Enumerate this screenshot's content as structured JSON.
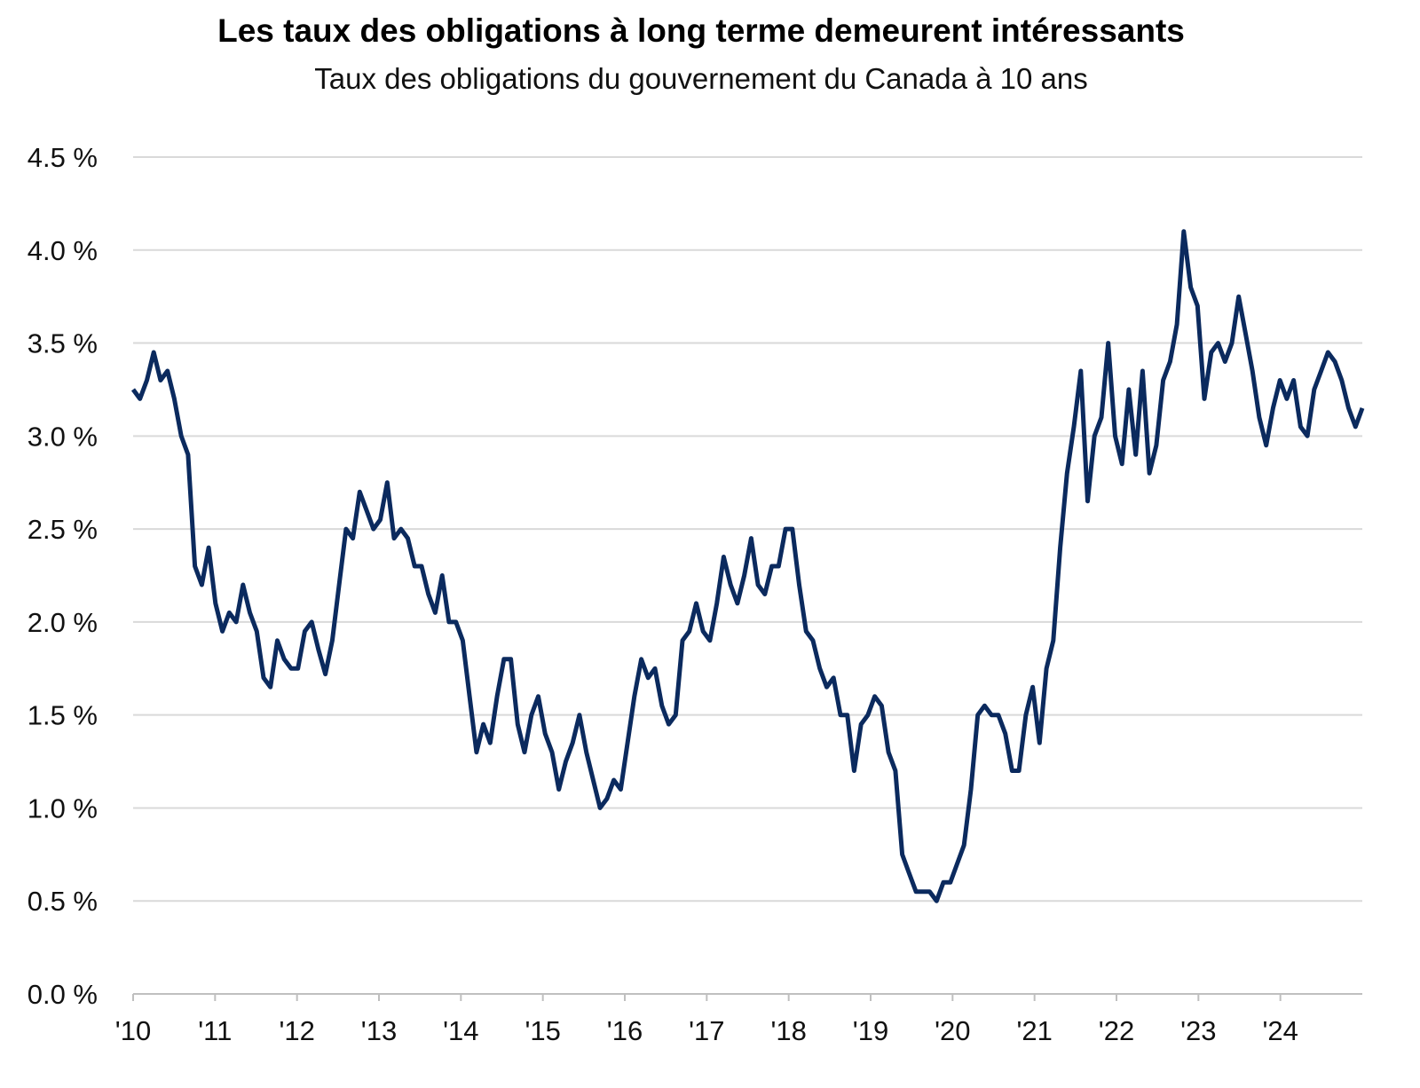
{
  "chart_data": {
    "type": "line",
    "title": "Les taux des obligations à long terme demeurent intéressants",
    "subtitle": "Taux des obligations du gouvernement du Canada à 10 ans",
    "xlabel": "",
    "ylabel": "",
    "ylim": [
      0,
      4.5
    ],
    "xlim": [
      "2010-01",
      "2024-12"
    ],
    "grid": "horizontal",
    "line_color": "#0b2a5e",
    "y_ticks": [
      {
        "value": 0.0,
        "label": "0.0 %"
      },
      {
        "value": 0.5,
        "label": "0.5 %"
      },
      {
        "value": 1.0,
        "label": "1.0 %"
      },
      {
        "value": 1.5,
        "label": "1.5 %"
      },
      {
        "value": 2.0,
        "label": "2.0 %"
      },
      {
        "value": 2.5,
        "label": "2.5 %"
      },
      {
        "value": 3.0,
        "label": "3.0 %"
      },
      {
        "value": 3.5,
        "label": "3.5 %"
      },
      {
        "value": 4.0,
        "label": "4.0 %"
      },
      {
        "value": 4.5,
        "label": "4.5 %"
      }
    ],
    "x_ticks": [
      {
        "year": 2010,
        "label": "'10"
      },
      {
        "year": 2011,
        "label": "'11"
      },
      {
        "year": 2012,
        "label": "'12"
      },
      {
        "year": 2013,
        "label": "'13"
      },
      {
        "year": 2014,
        "label": "'14"
      },
      {
        "year": 2015,
        "label": "'15"
      },
      {
        "year": 2016,
        "label": "'16"
      },
      {
        "year": 2017,
        "label": "'17"
      },
      {
        "year": 2018,
        "label": "'18"
      },
      {
        "year": 2019,
        "label": "'19"
      },
      {
        "year": 2020,
        "label": "'20"
      },
      {
        "year": 2021,
        "label": "'21"
      },
      {
        "year": 2022,
        "label": "'22"
      },
      {
        "year": 2023,
        "label": "'23"
      },
      {
        "year": 2024,
        "label": "'24"
      }
    ],
    "monthly_values_by_year": {
      "2010": [
        3.25,
        3.2,
        3.3,
        3.45,
        3.3,
        3.35,
        3.2,
        3.0,
        2.9,
        2.3,
        2.2,
        2.4
      ],
      "2011": [
        2.1,
        1.95,
        2.05,
        2.0,
        2.2,
        2.05,
        1.95,
        1.7,
        1.65,
        1.9,
        1.8,
        1.75
      ],
      "2012": [
        1.75,
        1.95,
        2.0,
        1.85,
        1.72,
        1.9,
        2.2,
        2.5,
        2.45,
        2.7,
        2.6,
        2.5
      ],
      "2013": [
        2.55,
        2.75,
        2.45,
        2.5,
        2.45,
        2.3,
        2.3,
        2.15,
        2.05,
        2.25,
        2.0,
        2.0
      ],
      "2014": [
        1.9,
        1.6,
        1.3,
        1.45,
        1.35,
        1.6,
        1.8,
        1.8,
        1.45,
        1.3,
        1.5,
        1.6
      ],
      "2015": [
        1.4,
        1.3,
        1.1,
        1.25,
        1.35,
        1.5,
        1.3,
        1.15,
        1.0,
        1.05,
        1.15,
        1.1
      ],
      "2016": [
        1.35,
        1.6,
        1.8,
        1.7,
        1.75,
        1.55,
        1.45,
        1.5,
        1.9,
        1.95,
        2.1,
        1.95
      ],
      "2017": [
        1.9,
        2.1,
        2.35,
        2.2,
        2.1,
        2.25,
        2.45,
        2.2,
        2.15,
        2.3,
        2.3,
        2.5
      ],
      "2018": [
        2.5,
        2.2,
        1.95,
        1.9,
        1.75,
        1.65,
        1.7,
        1.5,
        1.5,
        1.2,
        1.45,
        1.5
      ],
      "2019": [
        1.6,
        1.55,
        1.3,
        1.2,
        0.75,
        0.65,
        0.55,
        0.55,
        0.55,
        0.5,
        0.6,
        0.6
      ],
      "2020": [
        0.7,
        0.8,
        1.1,
        1.5,
        1.55,
        1.5,
        1.5,
        1.4,
        1.2,
        1.2,
        1.5,
        1.65
      ],
      "2021": [
        1.35,
        1.75,
        1.9,
        2.4,
        2.8,
        3.05,
        3.35,
        2.65,
        3.0,
        3.1,
        3.5,
        3.0
      ],
      "2022": [
        2.85,
        3.25,
        2.9,
        3.35,
        2.8,
        2.95,
        3.3,
        3.4,
        3.6,
        4.1,
        3.8,
        3.7
      ],
      "2023": [
        3.2,
        3.45,
        3.5,
        3.4,
        3.5,
        3.75,
        3.55,
        3.35,
        3.1,
        2.95,
        3.15,
        3.3
      ],
      "2024": [
        3.2,
        3.3,
        3.05,
        3.0,
        3.25,
        3.35,
        3.45,
        3.4,
        3.3,
        3.15,
        3.05,
        3.15
      ]
    }
  }
}
